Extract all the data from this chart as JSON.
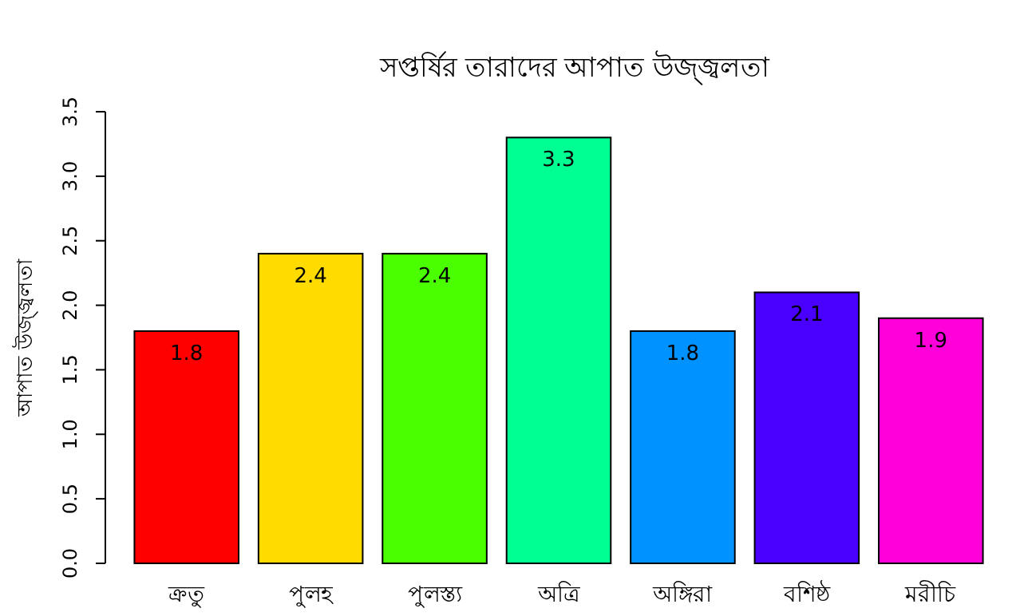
{
  "chart_data": {
    "type": "bar",
    "title": "সপ্তর্ষির তারাদের আপাত উজ্জ্বলতা",
    "ylabel": "আপাত উজ্জ্বলতা",
    "categories": [
      "ক্রতু",
      "পুলহ",
      "পুলস্ত্য",
      "অত্রি",
      "অঙ্গিরা",
      "বশিষ্ঠ",
      "মরীচি"
    ],
    "values": [
      1.8,
      2.4,
      2.4,
      3.3,
      1.8,
      2.1,
      1.9
    ],
    "colors": [
      "#ff0000",
      "#ffdb00",
      "#49ff00",
      "#00ff92",
      "#0092ff",
      "#4900ff",
      "#ff00db"
    ],
    "ylim": [
      0,
      3.5
    ],
    "yticks": [
      {
        "value": 0,
        "label": "0.0"
      },
      {
        "value": 0.5,
        "label": "0.5"
      },
      {
        "value": 1,
        "label": "1.0"
      },
      {
        "value": 1.5,
        "label": "1.5"
      },
      {
        "value": 2,
        "label": "2.0"
      },
      {
        "value": 2.5,
        "label": "2.5"
      },
      {
        "value": 3,
        "label": "3.0"
      },
      {
        "value": 3.5,
        "label": "3.5"
      }
    ],
    "data_labels": true
  }
}
